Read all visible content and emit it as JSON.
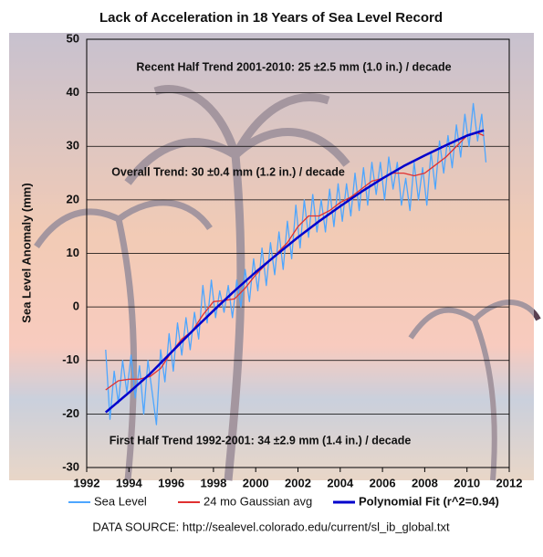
{
  "chart_data": {
    "type": "line",
    "title": "Lack of Acceleration in 18 Years of Sea Level Record",
    "y_label": "Sea Level Anomaly (mm)",
    "source": "DATA SOURCE: http://sealevel.colorado.edu/current/sl_ib_global.txt",
    "annotations": [
      "Recent Half Trend 2001-2010:  25 ±2.5 mm (1.0 in.) / decade",
      "Overall Trend:  30 ±0.4 mm (1.2 in.) / decade",
      "First Half Trend 1992-2001:  34 ±2.9 mm (1.4 in.) / decade"
    ],
    "xlim": [
      1992,
      2012
    ],
    "xticks": [
      1992,
      1994,
      1996,
      1998,
      2000,
      2002,
      2004,
      2006,
      2008,
      2010,
      2012
    ],
    "ylim": [
      -30,
      50
    ],
    "yticks": [
      -30,
      -20,
      -10,
      0,
      10,
      20,
      30,
      40,
      50
    ],
    "grid": true,
    "series": [
      {
        "name": "Sea Level",
        "color": "#4da6ff",
        "x": [
          1992.9,
          1993.1,
          1993.3,
          1993.5,
          1993.7,
          1993.9,
          1994.1,
          1994.3,
          1994.5,
          1994.7,
          1994.9,
          1995.1,
          1995.3,
          1995.5,
          1995.7,
          1995.9,
          1996.1,
          1996.3,
          1996.5,
          1996.7,
          1996.9,
          1997.1,
          1997.3,
          1997.5,
          1997.7,
          1997.9,
          1998.1,
          1998.3,
          1998.5,
          1998.7,
          1998.9,
          1999.1,
          1999.3,
          1999.5,
          1999.7,
          1999.9,
          2000.1,
          2000.3,
          2000.5,
          2000.7,
          2000.9,
          2001.1,
          2001.3,
          2001.5,
          2001.7,
          2001.9,
          2002.1,
          2002.3,
          2002.5,
          2002.7,
          2002.9,
          2003.1,
          2003.3,
          2003.5,
          2003.7,
          2003.9,
          2004.1,
          2004.3,
          2004.5,
          2004.7,
          2004.9,
          2005.1,
          2005.3,
          2005.5,
          2005.7,
          2005.9,
          2006.1,
          2006.3,
          2006.5,
          2006.7,
          2006.9,
          2007.1,
          2007.3,
          2007.5,
          2007.7,
          2007.9,
          2008.1,
          2008.3,
          2008.5,
          2008.7,
          2008.9,
          2009.1,
          2009.3,
          2009.5,
          2009.7,
          2009.9,
          2010.1,
          2010.3,
          2010.5,
          2010.7,
          2010.9
        ],
        "values": [
          -8,
          -21,
          -12,
          -18,
          -10,
          -16,
          -9,
          -17,
          -11,
          -20,
          -10,
          -16,
          -22,
          -8,
          -14,
          -5,
          -12,
          -3,
          -9,
          -2,
          -8,
          -1,
          -6,
          4,
          -3,
          5,
          -2,
          3,
          -1,
          4,
          -2,
          5,
          0,
          7,
          1,
          9,
          3,
          11,
          4,
          12,
          6,
          14,
          7,
          16,
          9,
          19,
          11,
          20,
          13,
          21,
          14,
          20,
          14,
          22,
          15,
          23,
          16,
          23,
          17,
          25,
          18,
          26,
          19,
          27,
          21,
          27,
          20,
          28,
          22,
          27,
          19,
          24,
          18,
          27,
          20,
          26,
          19,
          29,
          22,
          31,
          25,
          32,
          26,
          34,
          28,
          36,
          30,
          38,
          31,
          36,
          27
        ]
      },
      {
        "name": "24 mo Gaussian avg",
        "color": "#e03030",
        "x": [
          1992.9,
          1993.5,
          1994,
          1994.5,
          1995,
          1995.5,
          1996,
          1996.5,
          1997,
          1997.5,
          1998,
          1998.5,
          1999,
          1999.5,
          2000,
          2000.5,
          2001,
          2001.5,
          2002,
          2002.5,
          2003,
          2003.5,
          2004,
          2004.5,
          2005,
          2005.5,
          2006,
          2006.5,
          2007,
          2007.5,
          2008,
          2008.5,
          2009,
          2009.5,
          2010,
          2010.5,
          2010.8
        ],
        "values": [
          -15.5,
          -13.8,
          -13.5,
          -13.5,
          -13,
          -11.5,
          -8.5,
          -6,
          -4.5,
          -1.5,
          1,
          1.2,
          1.5,
          3.5,
          6,
          8,
          10,
          12,
          15,
          17,
          17,
          18,
          19.5,
          20.5,
          22,
          23.5,
          24,
          25,
          25,
          24.5,
          25,
          26.5,
          28,
          30,
          32,
          32.5,
          32
        ]
      },
      {
        "name": "Polynomial Fit (r^2=0.94)",
        "color": "#0000cc",
        "x": [
          1992.9,
          1994,
          1995,
          1996,
          1997,
          1998,
          1999,
          2000,
          2001,
          2002,
          2003,
          2004,
          2005,
          2006,
          2007,
          2008,
          2009,
          2010,
          2010.8
        ],
        "values": [
          -19.7,
          -16,
          -12.5,
          -8.5,
          -4.5,
          -0.7,
          3,
          6.5,
          9.8,
          13,
          16,
          18.8,
          21.5,
          24,
          26.3,
          28.3,
          30.2,
          32,
          33
        ]
      }
    ]
  }
}
